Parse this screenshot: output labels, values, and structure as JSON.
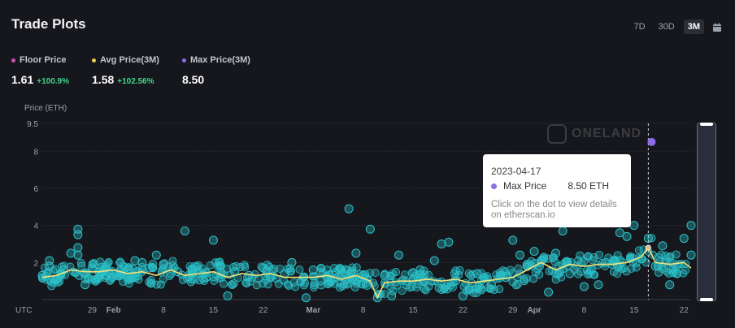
{
  "header": {
    "title": "Trade Plots",
    "ranges": [
      "7D",
      "30D",
      "3M"
    ],
    "active_range": "3M",
    "calendar_icon": "calendar-icon"
  },
  "stats": [
    {
      "label": "Floor Price",
      "value": "1.61",
      "change": "+100.9%",
      "color": "#c84fb4"
    },
    {
      "label": "Avg Price(3M)",
      "value": "1.58",
      "change": "+102.56%",
      "color": "#f2c94c"
    },
    {
      "label": "Max Price(3M)",
      "value": "8.50",
      "change": "",
      "color": "#8d6be8"
    }
  ],
  "watermark": "ONELAND",
  "tooltip": {
    "date": "2023-04-17",
    "series": "Max Price",
    "value": "8.50 ETH",
    "hint": "Click on the dot to view details on etherscan.io",
    "dot_color": "#8d6be8"
  },
  "chart_data": {
    "type": "scatter",
    "title": "",
    "ylabel": "Price (ETH)",
    "xlabel": "",
    "x_axis_timezone": "UTC",
    "ylim": [
      0,
      9.5
    ],
    "yticks": [
      2,
      4,
      6,
      8,
      9.5
    ],
    "xlim": [
      "2023-01-22",
      "2023-04-23"
    ],
    "xticks": [
      {
        "date": "2023-01-29",
        "label": "29"
      },
      {
        "date": "2023-02-01",
        "label": "Feb"
      },
      {
        "date": "2023-02-08",
        "label": "8"
      },
      {
        "date": "2023-02-15",
        "label": "15"
      },
      {
        "date": "2023-02-22",
        "label": "22"
      },
      {
        "date": "2023-03-01",
        "label": "Mar"
      },
      {
        "date": "2023-03-08",
        "label": "8"
      },
      {
        "date": "2023-03-15",
        "label": "15"
      },
      {
        "date": "2023-03-22",
        "label": "22"
      },
      {
        "date": "2023-03-29",
        "label": "29"
      },
      {
        "date": "2023-04-01",
        "label": "Apr"
      },
      {
        "date": "2023-04-08",
        "label": "8"
      },
      {
        "date": "2023-04-15",
        "label": "15"
      },
      {
        "date": "2023-04-22",
        "label": "22"
      }
    ],
    "grid": true,
    "series": [
      {
        "name": "Trades",
        "kind": "scatter",
        "color": "#2bc1c9",
        "points": [
          [
            "2023-01-22",
            1.3
          ],
          [
            "2023-01-23",
            1.8
          ],
          [
            "2023-01-23",
            2.1
          ],
          [
            "2023-01-24",
            1.1
          ],
          [
            "2023-01-25",
            1.6
          ],
          [
            "2023-01-26",
            2.5
          ],
          [
            "2023-01-27",
            3.5
          ],
          [
            "2023-01-27",
            3.8
          ],
          [
            "2023-01-27",
            2.8
          ],
          [
            "2023-01-27",
            2.4
          ],
          [
            "2023-01-28",
            1.4
          ],
          [
            "2023-01-28",
            0.8
          ],
          [
            "2023-01-29",
            1.7
          ],
          [
            "2023-01-30",
            1.5
          ],
          [
            "2023-01-31",
            1.3
          ],
          [
            "2023-02-02",
            1.6
          ],
          [
            "2023-02-03",
            1.2
          ],
          [
            "2023-02-04",
            2.1
          ],
          [
            "2023-02-05",
            2.0
          ],
          [
            "2023-02-06",
            1.7
          ],
          [
            "2023-02-07",
            2.4
          ],
          [
            "2023-02-08",
            1.9
          ],
          [
            "2023-02-09",
            1.4
          ],
          [
            "2023-02-10",
            1.5
          ],
          [
            "2023-02-11",
            3.7
          ],
          [
            "2023-02-12",
            1.6
          ],
          [
            "2023-02-14",
            1.2
          ],
          [
            "2023-02-15",
            3.2
          ],
          [
            "2023-02-16",
            1.8
          ],
          [
            "2023-02-17",
            0.2
          ],
          [
            "2023-02-18",
            1.5
          ],
          [
            "2023-02-20",
            1.3
          ],
          [
            "2023-02-22",
            1.7
          ],
          [
            "2023-02-23",
            1.2
          ],
          [
            "2023-02-25",
            1.4
          ],
          [
            "2023-02-26",
            2.0
          ],
          [
            "2023-02-28",
            0.1
          ],
          [
            "2023-03-01",
            1.6
          ],
          [
            "2023-03-02",
            1.0
          ],
          [
            "2023-03-03",
            1.2
          ],
          [
            "2023-03-05",
            1.4
          ],
          [
            "2023-03-06",
            4.9
          ],
          [
            "2023-03-07",
            2.5
          ],
          [
            "2023-03-08",
            1.3
          ],
          [
            "2023-03-09",
            3.8
          ],
          [
            "2023-03-10",
            0.1
          ],
          [
            "2023-03-11",
            1.3
          ],
          [
            "2023-03-12",
            0.2
          ],
          [
            "2023-03-13",
            2.4
          ],
          [
            "2023-03-15",
            1.1
          ],
          [
            "2023-03-16",
            1.6
          ],
          [
            "2023-03-18",
            2.1
          ],
          [
            "2023-03-19",
            3.0
          ],
          [
            "2023-03-20",
            3.1
          ],
          [
            "2023-03-21",
            1.0
          ],
          [
            "2023-03-22",
            0.2
          ],
          [
            "2023-03-24",
            1.4
          ],
          [
            "2023-03-26",
            0.8
          ],
          [
            "2023-03-28",
            1.2
          ],
          [
            "2023-03-29",
            3.2
          ],
          [
            "2023-03-30",
            2.4
          ],
          [
            "2023-03-31",
            1.9
          ],
          [
            "2023-04-01",
            2.6
          ],
          [
            "2023-04-02",
            2.1
          ],
          [
            "2023-04-03",
            0.4
          ],
          [
            "2023-04-04",
            2.5
          ],
          [
            "2023-04-05",
            3.7
          ],
          [
            "2023-04-06",
            1.4
          ],
          [
            "2023-04-08",
            0.7
          ],
          [
            "2023-04-09",
            1.6
          ],
          [
            "2023-04-10",
            0.8
          ],
          [
            "2023-04-11",
            2.0
          ],
          [
            "2023-04-12",
            1.9
          ],
          [
            "2023-04-13",
            3.6
          ],
          [
            "2023-04-14",
            3.4
          ],
          [
            "2023-04-15",
            4.0
          ],
          [
            "2023-04-16",
            2.2
          ],
          [
            "2023-04-17",
            3.3
          ],
          [
            "2023-04-18",
            1.8
          ],
          [
            "2023-04-19",
            2.9
          ],
          [
            "2023-04-20",
            0.8
          ],
          [
            "2023-04-21",
            1.4
          ],
          [
            "2023-04-22",
            3.3
          ],
          [
            "2023-04-23",
            4.0
          ],
          [
            "2023-04-23",
            2.4
          ]
        ]
      },
      {
        "name": "Avg Price(3M)",
        "kind": "line",
        "color": "#f2e27a",
        "points": [
          [
            "2023-01-22",
            1.2
          ],
          [
            "2023-01-24",
            1.3
          ],
          [
            "2023-01-26",
            1.6
          ],
          [
            "2023-01-28",
            1.5
          ],
          [
            "2023-01-30",
            1.5
          ],
          [
            "2023-02-01",
            1.6
          ],
          [
            "2023-02-03",
            1.4
          ],
          [
            "2023-02-05",
            1.5
          ],
          [
            "2023-02-07",
            1.3
          ],
          [
            "2023-02-09",
            1.6
          ],
          [
            "2023-02-11",
            1.3
          ],
          [
            "2023-02-13",
            1.4
          ],
          [
            "2023-02-15",
            1.5
          ],
          [
            "2023-02-17",
            1.2
          ],
          [
            "2023-02-19",
            1.4
          ],
          [
            "2023-02-21",
            1.3
          ],
          [
            "2023-02-23",
            1.4
          ],
          [
            "2023-02-25",
            1.2
          ],
          [
            "2023-02-27",
            1.2
          ],
          [
            "2023-03-01",
            1.2
          ],
          [
            "2023-03-03",
            1.3
          ],
          [
            "2023-03-05",
            1.1
          ],
          [
            "2023-03-07",
            1.3
          ],
          [
            "2023-03-09",
            1.0
          ],
          [
            "2023-03-10",
            0.1
          ],
          [
            "2023-03-11",
            0.9
          ],
          [
            "2023-03-13",
            1.0
          ],
          [
            "2023-03-15",
            1.0
          ],
          [
            "2023-03-17",
            1.1
          ],
          [
            "2023-03-19",
            1.0
          ],
          [
            "2023-03-21",
            1.1
          ],
          [
            "2023-03-23",
            0.9
          ],
          [
            "2023-03-25",
            1.0
          ],
          [
            "2023-03-27",
            1.1
          ],
          [
            "2023-03-29",
            1.2
          ],
          [
            "2023-03-31",
            1.6
          ],
          [
            "2023-04-02",
            2.0
          ],
          [
            "2023-04-04",
            1.6
          ],
          [
            "2023-04-06",
            1.9
          ],
          [
            "2023-04-08",
            1.8
          ],
          [
            "2023-04-10",
            1.9
          ],
          [
            "2023-04-12",
            1.9
          ],
          [
            "2023-04-14",
            2.0
          ],
          [
            "2023-04-16",
            2.3
          ],
          [
            "2023-04-17",
            2.8
          ],
          [
            "2023-04-18",
            2.0
          ],
          [
            "2023-04-20",
            1.9
          ],
          [
            "2023-04-22",
            2.0
          ],
          [
            "2023-04-23",
            1.7
          ]
        ]
      },
      {
        "name": "Max Price",
        "kind": "point",
        "color": "#8d6be8",
        "points": [
          [
            "2023-04-17",
            8.5
          ]
        ]
      }
    ]
  }
}
